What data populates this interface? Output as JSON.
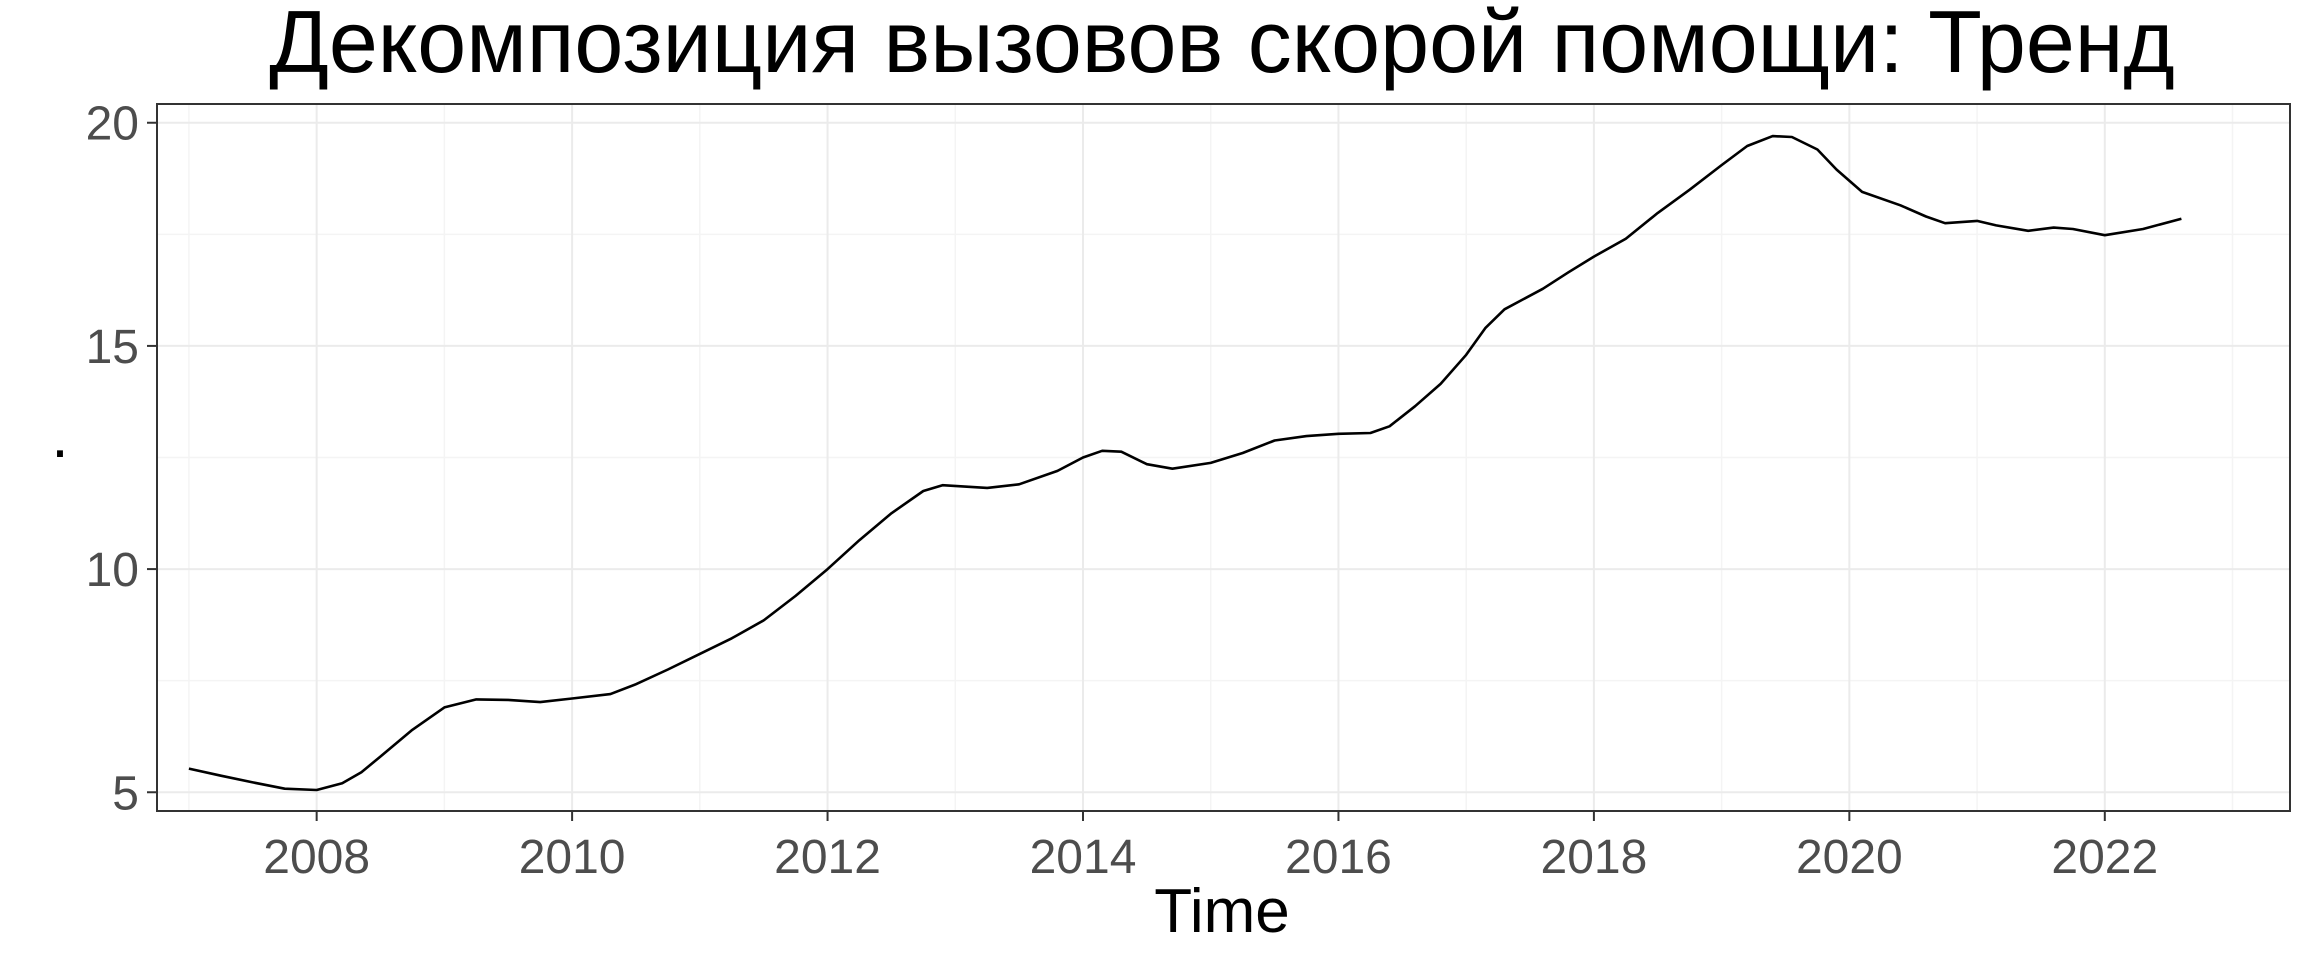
{
  "chart_data": {
    "type": "line",
    "title": "Декомпозиция вызовов скорой помощи: Тренд",
    "xlabel": "Time",
    "ylabel": ".",
    "xlim": [
      2006.75,
      2023.45
    ],
    "ylim": [
      4.58,
      20.42
    ],
    "x_ticks": [
      2008,
      2010,
      2012,
      2014,
      2016,
      2018,
      2020,
      2022
    ],
    "x_tick_labels": [
      "2008",
      "2010",
      "2012",
      "2014",
      "2016",
      "2018",
      "2020",
      "2022"
    ],
    "y_ticks": [
      5,
      10,
      15,
      20
    ],
    "y_tick_labels": [
      "5",
      "10",
      "15",
      "20"
    ],
    "grid": true,
    "series": [
      {
        "color": "#000000",
        "x": [
          2007.0,
          2007.25,
          2007.5,
          2007.75,
          2008.0,
          2008.2,
          2008.35,
          2008.5,
          2008.75,
          2009.0,
          2009.25,
          2009.5,
          2009.75,
          2010.0,
          2010.3,
          2010.5,
          2010.75,
          2011.0,
          2011.25,
          2011.5,
          2011.75,
          2012.0,
          2012.25,
          2012.5,
          2012.75,
          2012.9,
          2013.25,
          2013.5,
          2013.8,
          2014.0,
          2014.15,
          2014.3,
          2014.5,
          2014.7,
          2015.0,
          2015.25,
          2015.5,
          2015.75,
          2016.0,
          2016.25,
          2016.4,
          2016.6,
          2016.8,
          2017.0,
          2017.15,
          2017.3,
          2017.6,
          2017.8,
          2018.0,
          2018.25,
          2018.5,
          2018.75,
          2019.0,
          2019.2,
          2019.4,
          2019.55,
          2019.75,
          2019.9,
          2020.1,
          2020.4,
          2020.6,
          2020.75,
          2021.0,
          2021.15,
          2021.4,
          2021.6,
          2021.75,
          2022.0,
          2022.3,
          2022.6
        ],
        "values": [
          5.53,
          5.37,
          5.22,
          5.08,
          5.05,
          5.2,
          5.45,
          5.8,
          6.4,
          6.9,
          7.08,
          7.07,
          7.02,
          7.1,
          7.2,
          7.42,
          7.75,
          8.1,
          8.45,
          8.85,
          9.4,
          10.0,
          10.65,
          11.25,
          11.75,
          11.88,
          11.82,
          11.9,
          12.2,
          12.5,
          12.65,
          12.63,
          12.35,
          12.25,
          12.38,
          12.6,
          12.88,
          12.98,
          13.03,
          13.05,
          13.2,
          13.65,
          14.15,
          14.8,
          15.4,
          15.82,
          16.28,
          16.65,
          17.0,
          17.4,
          17.98,
          18.5,
          19.05,
          19.48,
          19.7,
          19.68,
          19.4,
          18.95,
          18.45,
          18.15,
          17.9,
          17.75,
          17.8,
          17.7,
          17.58,
          17.65,
          17.62,
          17.48,
          17.62,
          17.85
        ]
      }
    ]
  }
}
